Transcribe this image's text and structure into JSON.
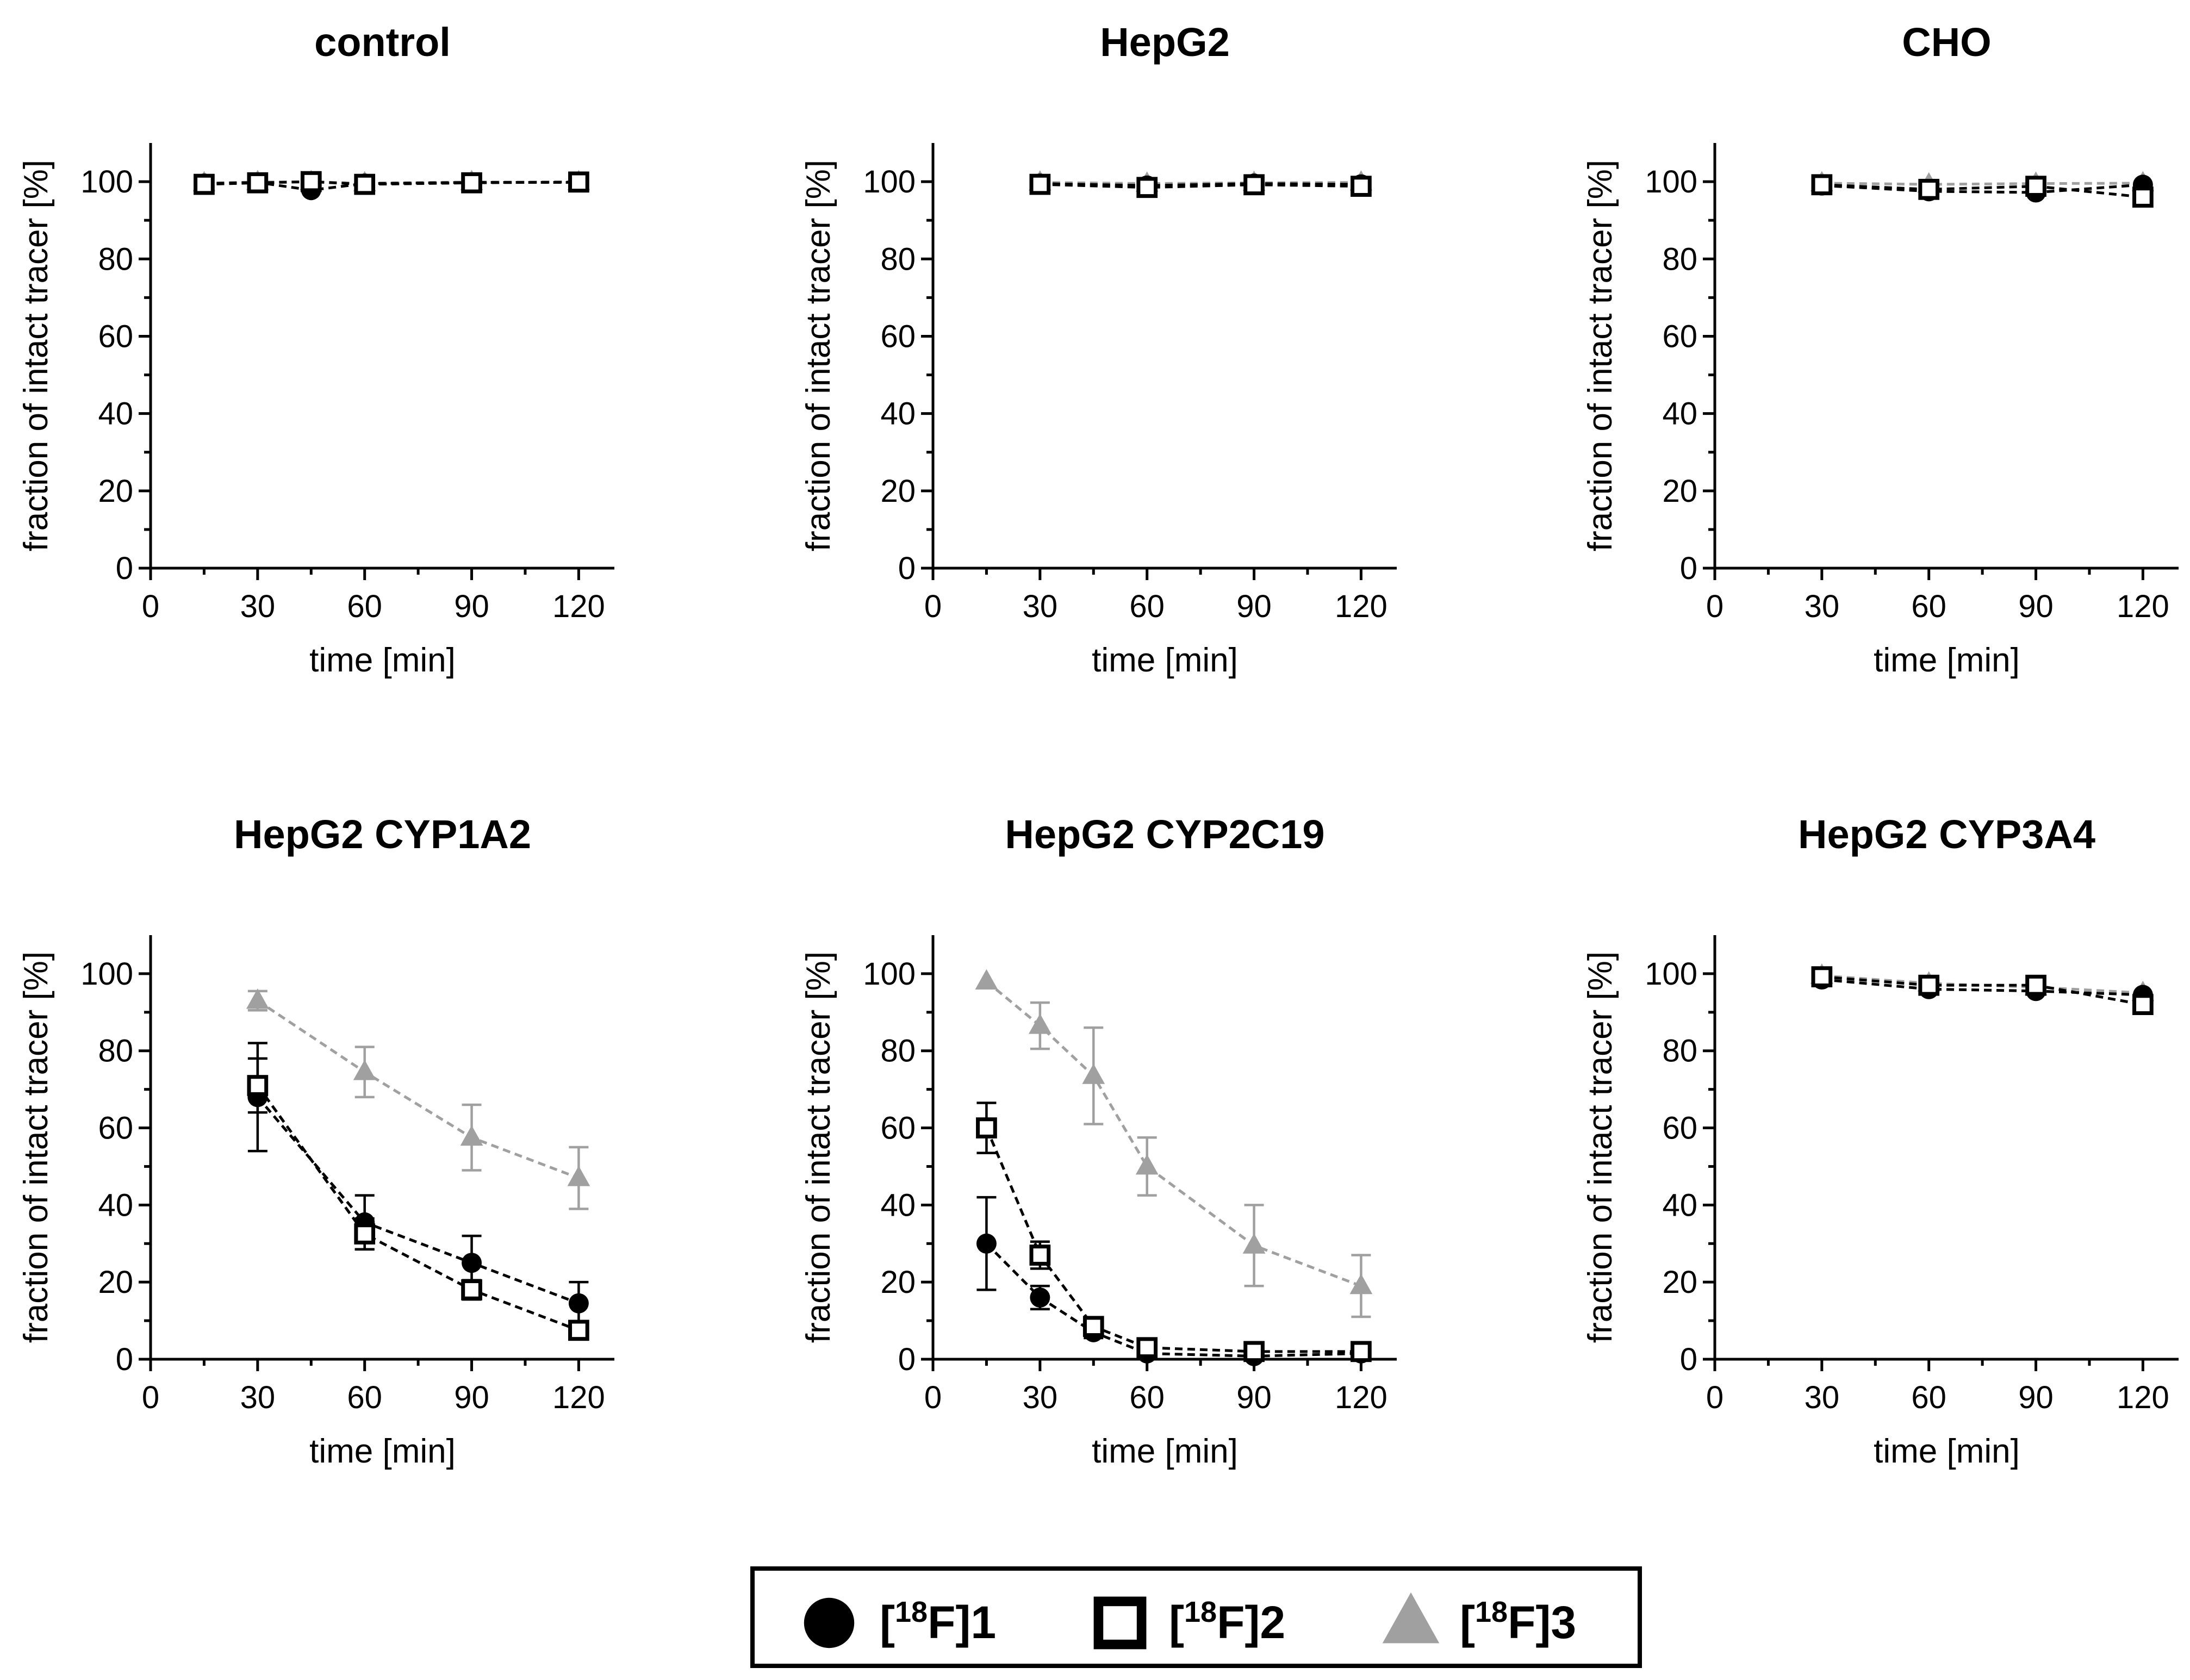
{
  "legend": [
    {
      "prefix": "[",
      "sup": "18",
      "suffix": "F]1"
    },
    {
      "prefix": "[",
      "sup": "18",
      "suffix": "F]2"
    },
    {
      "prefix": "[",
      "sup": "18",
      "suffix": "F]3"
    }
  ],
  "style": {
    "tracer1_color": "#000000",
    "tracer2_color": "#000000",
    "tracer3_color": "#a0a0a0",
    "tracer1_marker": "filled-circle",
    "tracer2_marker": "open-square",
    "tracer3_marker": "filled-triangle"
  },
  "chart_data": [
    {
      "type": "line",
      "title": "control",
      "xlabel": "time [min]",
      "ylabel": "fraction of intact tracer [%]",
      "xlim": [
        0,
        130
      ],
      "ylim": [
        0,
        110
      ],
      "xticks": [
        0,
        30,
        60,
        90,
        120
      ],
      "yticks": [
        0,
        20,
        40,
        60,
        80,
        100
      ],
      "grid": false,
      "series": [
        {
          "x": [
            15,
            30,
            45,
            60,
            90,
            120
          ],
          "y": [
            99.5,
            99.8,
            97.8,
            99.5,
            99.8,
            99.8
          ],
          "err": [
            0,
            0,
            0,
            0,
            0,
            0
          ]
        },
        {
          "x": [
            15,
            30,
            45,
            60,
            90,
            120
          ],
          "y": [
            99.3,
            99.7,
            100,
            99.3,
            99.7,
            99.9
          ],
          "err": [
            0,
            0,
            0,
            0,
            0,
            0
          ]
        },
        {
          "x": [
            15,
            30,
            45,
            60,
            90,
            120
          ],
          "y": [
            99.6,
            99.9,
            99.9,
            99.6,
            99.9,
            99.9
          ],
          "err": [
            0,
            0,
            0,
            0,
            0,
            0
          ]
        }
      ]
    },
    {
      "type": "line",
      "title": "HepG2",
      "xlabel": "time [min]",
      "ylabel": "fraction of intact tracer [%]",
      "xlim": [
        0,
        130
      ],
      "ylim": [
        0,
        110
      ],
      "xticks": [
        0,
        30,
        60,
        90,
        120
      ],
      "yticks": [
        0,
        20,
        40,
        60,
        80,
        100
      ],
      "grid": false,
      "series": [
        {
          "x": [
            30,
            60,
            90,
            120
          ],
          "y": [
            99.5,
            99,
            99.5,
            99.3
          ],
          "err": [
            0,
            0,
            0,
            0
          ]
        },
        {
          "x": [
            30,
            60,
            90,
            120
          ],
          "y": [
            99.3,
            98.5,
            99.2,
            98.8
          ],
          "err": [
            0,
            0,
            0,
            0
          ]
        },
        {
          "x": [
            30,
            60,
            90,
            120
          ],
          "y": [
            99.8,
            99.5,
            99.7,
            99.8
          ],
          "err": [
            0,
            0,
            0,
            0
          ]
        }
      ]
    },
    {
      "type": "line",
      "title": "CHO",
      "xlabel": "time [min]",
      "ylabel": "fraction of intact tracer [%]",
      "xlim": [
        0,
        130
      ],
      "ylim": [
        0,
        110
      ],
      "xticks": [
        0,
        30,
        60,
        90,
        120
      ],
      "yticks": [
        0,
        20,
        40,
        60,
        80,
        100
      ],
      "grid": false,
      "series": [
        {
          "x": [
            30,
            60,
            90,
            120
          ],
          "y": [
            99,
            97.5,
            97.2,
            99.2
          ],
          "err": [
            0,
            0,
            0,
            0
          ]
        },
        {
          "x": [
            30,
            60,
            90,
            120
          ],
          "y": [
            99.2,
            98,
            98.8,
            96
          ],
          "err": [
            0,
            0,
            0,
            0
          ]
        },
        {
          "x": [
            30,
            60,
            90,
            120
          ],
          "y": [
            99.6,
            99.3,
            99.5,
            99.6
          ],
          "err": [
            0,
            0,
            0,
            0
          ]
        }
      ]
    },
    {
      "type": "line",
      "title": "HepG2 CYP1A2",
      "xlabel": "time [min]",
      "ylabel": "fraction of intact tracer [%]",
      "xlim": [
        0,
        130
      ],
      "ylim": [
        0,
        110
      ],
      "xticks": [
        0,
        30,
        60,
        90,
        120
      ],
      "yticks": [
        0,
        20,
        40,
        60,
        80,
        100
      ],
      "grid": false,
      "series": [
        {
          "x": [
            30,
            60,
            90,
            120
          ],
          "y": [
            68,
            35.5,
            25,
            14.5
          ],
          "err": [
            14,
            7,
            7,
            5.5
          ]
        },
        {
          "x": [
            30,
            60,
            90,
            120
          ],
          "y": [
            71,
            32.5,
            18,
            7.5
          ],
          "err": [
            7,
            4,
            2.5,
            1.5
          ]
        },
        {
          "x": [
            30,
            60,
            90,
            120
          ],
          "y": [
            93,
            74.5,
            57.5,
            47
          ],
          "err": [
            2.5,
            6.5,
            8.5,
            8
          ]
        }
      ]
    },
    {
      "type": "line",
      "title": "HepG2 CYP2C19",
      "xlabel": "time [min]",
      "ylabel": "fraction of intact tracer [%]",
      "xlim": [
        0,
        130
      ],
      "ylim": [
        0,
        110
      ],
      "xticks": [
        0,
        30,
        60,
        90,
        120
      ],
      "yticks": [
        0,
        20,
        40,
        60,
        80,
        100
      ],
      "grid": false,
      "series": [
        {
          "x": [
            15,
            30,
            45,
            60,
            90,
            120
          ],
          "y": [
            30,
            16,
            7,
            1.5,
            0.8,
            1.5
          ],
          "err": [
            12,
            3,
            1.5,
            0,
            0,
            0
          ]
        },
        {
          "x": [
            15,
            30,
            45,
            60,
            90,
            120
          ],
          "y": [
            60,
            27,
            8.5,
            3,
            2,
            2
          ],
          "err": [
            6.5,
            3.5,
            1.5,
            0,
            0,
            0
          ]
        },
        {
          "x": [
            15,
            30,
            45,
            60,
            90,
            120
          ],
          "y": [
            98,
            86.5,
            73.5,
            50,
            29.5,
            19
          ],
          "err": [
            0,
            6,
            12.5,
            7.5,
            10.5,
            8
          ]
        }
      ]
    },
    {
      "type": "line",
      "title": "HepG2 CYP3A4",
      "xlabel": "time [min]",
      "ylabel": "fraction of intact tracer [%]",
      "xlim": [
        0,
        130
      ],
      "ylim": [
        0,
        110
      ],
      "xticks": [
        0,
        30,
        60,
        90,
        120
      ],
      "yticks": [
        0,
        20,
        40,
        60,
        80,
        100
      ],
      "grid": false,
      "series": [
        {
          "x": [
            30,
            60,
            90,
            120
          ],
          "y": [
            98.5,
            96,
            95.5,
            94.5
          ],
          "err": [
            0,
            0,
            0,
            0
          ]
        },
        {
          "x": [
            30,
            60,
            90,
            120
          ],
          "y": [
            99.2,
            97,
            97,
            92
          ],
          "err": [
            0,
            0,
            0,
            0
          ]
        },
        {
          "x": [
            30,
            60,
            90,
            120
          ],
          "y": [
            99.5,
            97.5,
            96.5,
            95
          ],
          "err": [
            0,
            0,
            0,
            0
          ]
        }
      ]
    }
  ]
}
